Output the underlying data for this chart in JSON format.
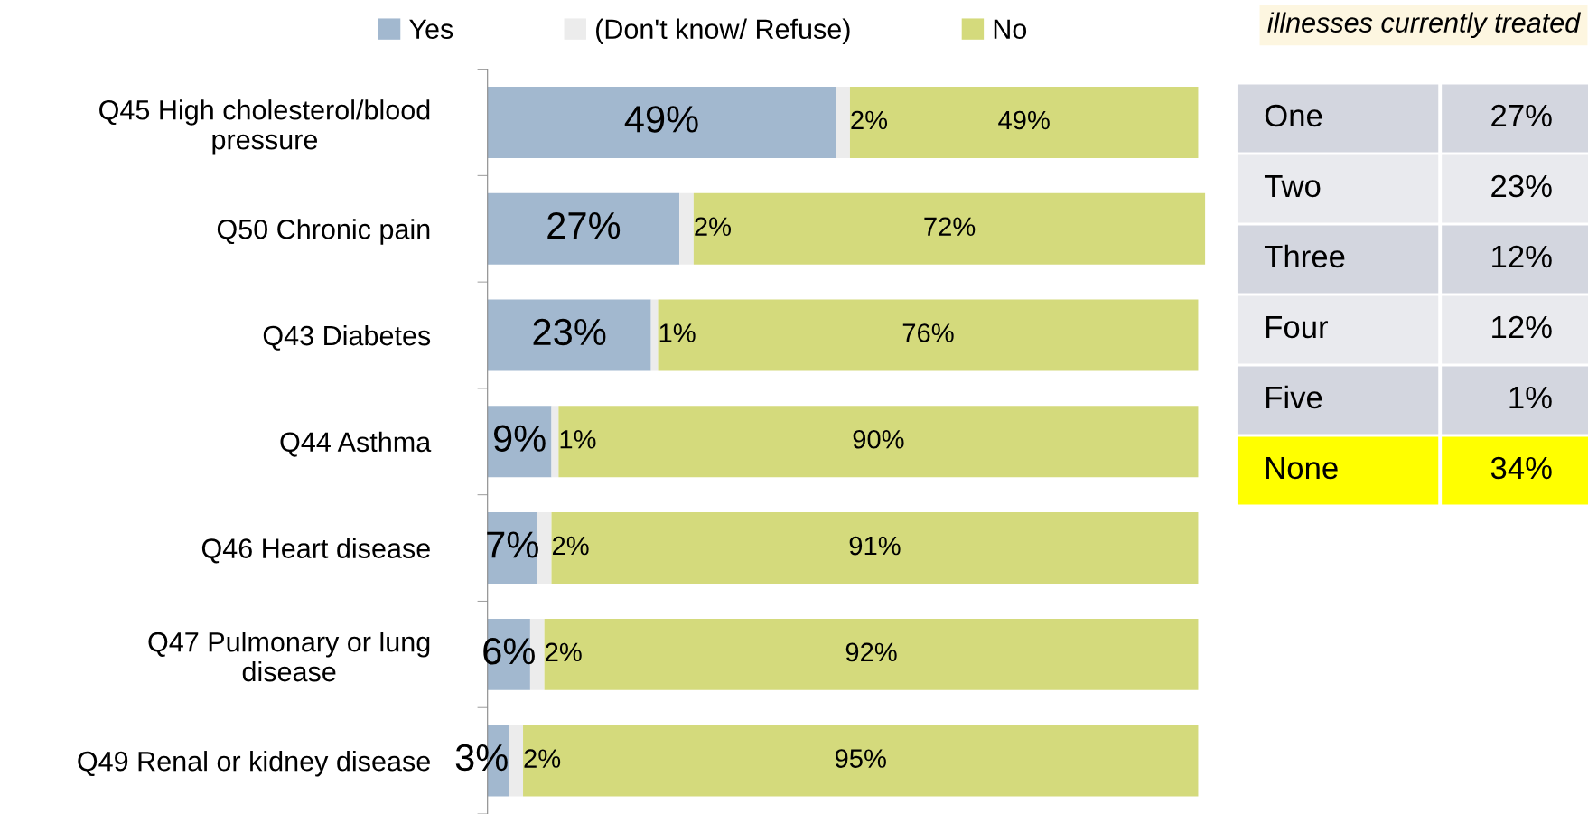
{
  "chart_data": [
    {
      "type": "bar",
      "orientation": "horizontal",
      "stacked": true,
      "legend": "top",
      "grid": false,
      "tick_labels": "y",
      "categories": [
        "Q45 High cholesterol/blood pressure",
        "Q50 Chronic pain",
        "Q43 Diabetes",
        "Q44 Asthma",
        "Q46 Heart disease",
        "Q47 Pulmonary or lung disease",
        "Q49 Renal or kidney disease"
      ],
      "series": [
        {
          "name": "Yes",
          "color": "#a2b8cf",
          "values": [
            49,
            27,
            23,
            9,
            7,
            6,
            3
          ],
          "value_labels": [
            "49%",
            "27%",
            "23%",
            "9%",
            "7%",
            "6%",
            "3%"
          ]
        },
        {
          "name": "(Don't know/ Refuse)",
          "color": "#ececec",
          "values": [
            2,
            2,
            1,
            1,
            2,
            2,
            2
          ],
          "value_labels": [
            "2%",
            "2%",
            "1%",
            "1%",
            "2%",
            "2%",
            "2%"
          ]
        },
        {
          "name": "No",
          "color": "#d4da7c",
          "values": [
            49,
            72,
            76,
            90,
            91,
            92,
            95
          ],
          "value_labels": [
            "49%",
            "72%",
            "76%",
            "90%",
            "91%",
            "92%",
            "95%"
          ]
        }
      ]
    },
    {
      "type": "other",
      "annotations": [
        "illnesses currently treated"
      ],
      "categories": [
        "One",
        "Two",
        "Three",
        "Four",
        "Five",
        "None"
      ],
      "value_labels": [
        "27%",
        "23%",
        "12%",
        "12%",
        "1%",
        "34%"
      ],
      "colors": [
        "#d3d6df",
        "#e9eaee",
        "#d3d6df",
        "#e9eaee",
        "#d3d6df",
        "#ffff00"
      ]
    }
  ]
}
